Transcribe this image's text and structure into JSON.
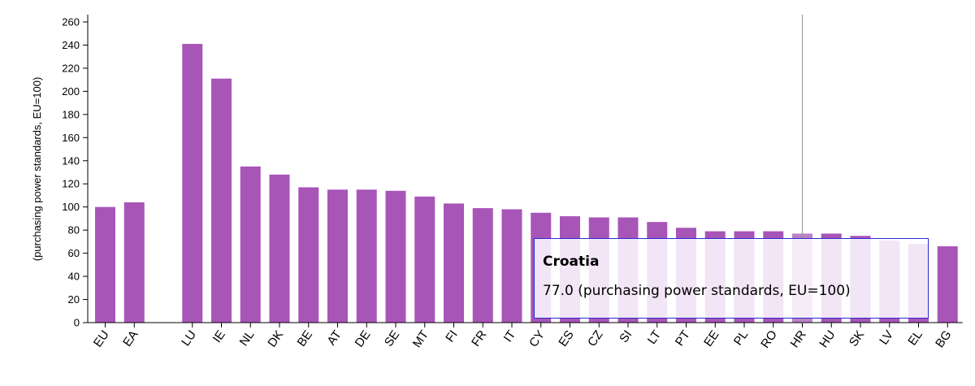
{
  "chart_data": {
    "type": "bar",
    "ylabel": "(purchasing power standards, EU=100)",
    "xlabel": "",
    "title": "",
    "ylim": [
      0,
      260
    ],
    "yticks": [
      0,
      20,
      40,
      60,
      80,
      100,
      120,
      140,
      160,
      180,
      200,
      220,
      240,
      260
    ],
    "grid": false,
    "bar_color": "#a855b8",
    "categories": [
      "EU",
      "EA",
      "",
      "LU",
      "IE",
      "NL",
      "DK",
      "BE",
      "AT",
      "DE",
      "SE",
      "MT",
      "FI",
      "FR",
      "IT",
      "CY",
      "ES",
      "CZ",
      "SI",
      "LT",
      "PT",
      "EE",
      "PL",
      "RO",
      "HR",
      "HU",
      "SK",
      "LV",
      "EL",
      "BG"
    ],
    "values": [
      100,
      104,
      null,
      241,
      211,
      135,
      128,
      117,
      115,
      115,
      114,
      109,
      103,
      99,
      98,
      95,
      92,
      91,
      91,
      87,
      82,
      79,
      79,
      79,
      77,
      77,
      75,
      71,
      68,
      66
    ],
    "highlight": "HR",
    "tooltip": {
      "title": "Croatia",
      "value_text": "77.0 (purchasing power standards, EU=100)"
    }
  }
}
